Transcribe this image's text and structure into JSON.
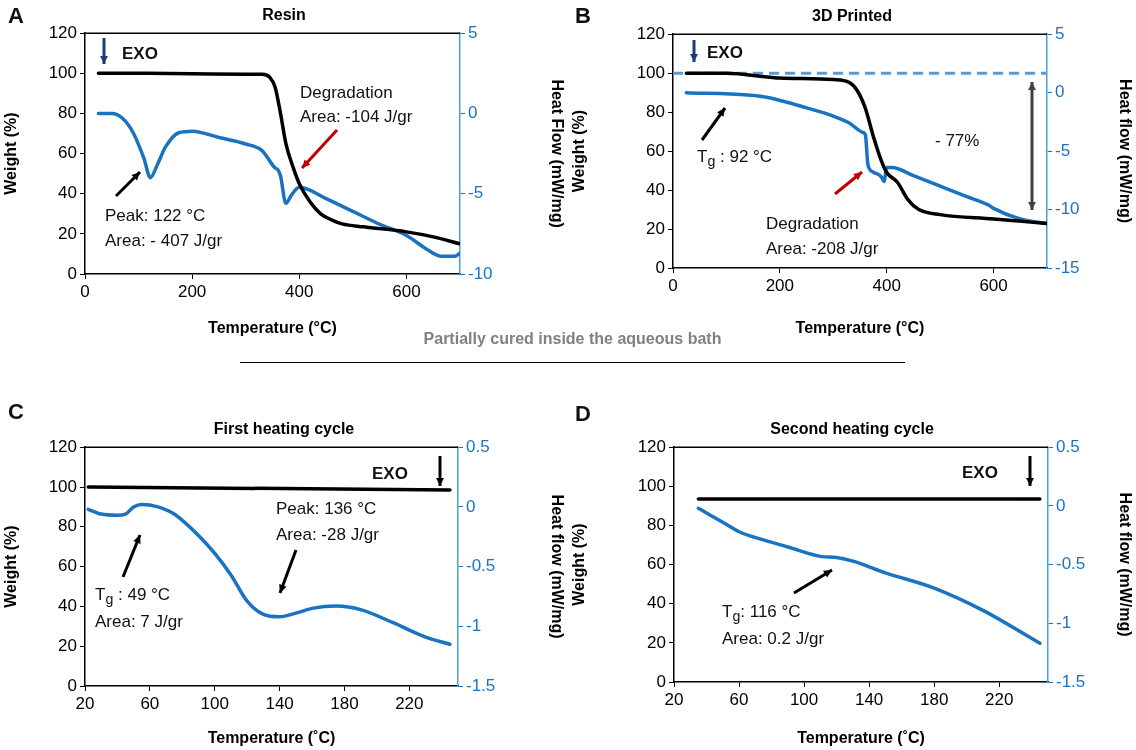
{
  "chart_data": [
    {
      "type": "line",
      "title": "Resin",
      "xlabel": "Temperature (°C)",
      "ylabel": "Weight (%)",
      "y2label": "Heat Flow (mW/mg)",
      "xlim": [
        0,
        700
      ],
      "xticks": [
        0,
        200,
        400,
        600
      ],
      "ylim": [
        0,
        120
      ],
      "yticks": [
        0,
        20,
        40,
        60,
        80,
        100,
        120
      ],
      "y2lim": [
        -10,
        5
      ],
      "y2ticks": [
        -10,
        -5,
        0,
        5
      ],
      "series": [
        {
          "color": "#000000",
          "x": [
            25,
            100,
            200,
            300,
            330,
            345,
            355,
            365,
            375,
            390,
            400,
            420,
            440,
            460,
            480,
            520,
            600,
            650,
            700
          ],
          "values": [
            100,
            100,
            99.8,
            99.6,
            99.5,
            98,
            93,
            80,
            65,
            52,
            45,
            36,
            30,
            27,
            25,
            23.5,
            21,
            18.5,
            15
          ]
        },
        {
          "color": "#1a73c1",
          "axis": "y2",
          "x": [
            25,
            50,
            70,
            90,
            110,
            122,
            135,
            150,
            175,
            200,
            250,
            300,
            330,
            355,
            360,
            365,
            375,
            385,
            400,
            450,
            500,
            550,
            600,
            640,
            665,
            690,
            700
          ],
          "values": [
            0,
            0,
            -0.3,
            -1.2,
            -2.8,
            -4,
            -3.2,
            -2.1,
            -1.2,
            -1.1,
            -1.5,
            -1.9,
            -2.3,
            -3.4,
            -3.5,
            -3.9,
            -5.6,
            -5.1,
            -4.6,
            -5.3,
            -6.1,
            -6.9,
            -7.6,
            -8.5,
            -8.9,
            -8.9,
            -8.7
          ]
        }
      ],
      "annotations": [
        "A",
        "EXO",
        "Degradation",
        "Area: -104 J/gr",
        "Peak: 122 °C",
        "Area: - 407 J/gr"
      ]
    },
    {
      "type": "line",
      "title": "3D Printed",
      "xlabel": "Temperature (°C)",
      "ylabel": "Weight (%)",
      "y2label": "Heat flow (mW/mg)",
      "xlim": [
        0,
        700
      ],
      "xticks": [
        0,
        200,
        400,
        600
      ],
      "ylim": [
        0,
        120
      ],
      "yticks": [
        0,
        20,
        40,
        60,
        80,
        100,
        120
      ],
      "y2lim": [
        -15,
        5
      ],
      "y2ticks": [
        -15,
        -10,
        -5,
        0,
        5
      ],
      "series": [
        {
          "color": "#000000",
          "x": [
            25,
            100,
            200,
            300,
            330,
            345,
            360,
            375,
            390,
            400,
            420,
            440,
            460,
            500,
            600,
            700
          ],
          "values": [
            100,
            100,
            97.5,
            96.7,
            95.2,
            91,
            82,
            67.5,
            55,
            49,
            44,
            35,
            30,
            27.4,
            25.2,
            22.8
          ]
        },
        {
          "color": "#1a73c1",
          "axis": "y2",
          "x": [
            25,
            140,
            175,
            250,
            300,
            330,
            355,
            360,
            365,
            375,
            390,
            395,
            400,
            410,
            450,
            500,
            550,
            590,
            600,
            650,
            700
          ],
          "values": [
            0,
            -0.2,
            -0.4,
            -1.3,
            -2,
            -2.6,
            -3.4,
            -3.6,
            -6.2,
            -6.8,
            -7.2,
            -7.6,
            -6.4,
            -6.4,
            -7.1,
            -8,
            -8.9,
            -9.6,
            -9.9,
            -10.8,
            -11.2
          ]
        }
      ],
      "ref_lines": [
        {
          "axis": "y",
          "value": 100,
          "color": "#5b9bd5",
          "line_style": "dashed"
        }
      ],
      "annotations": [
        "B",
        "EXO",
        "T$_{g}$ : 92 °C",
        "Degradation",
        "Area: -208 J/gr",
        "- 77%"
      ]
    },
    {
      "type": "line",
      "title": "First heating cycle",
      "subtitle": "Partially cured inside the aqueous bath",
      "xlabel": "Temperature (˚C)",
      "ylabel": "Weight (%)",
      "y2label": "Heat flow (mW/mg)",
      "xlim": [
        20,
        250
      ],
      "xticks": [
        20,
        60,
        100,
        140,
        180,
        220
      ],
      "ylim": [
        0,
        120
      ],
      "yticks": [
        0,
        20,
        40,
        60,
        80,
        100,
        120
      ],
      "y2lim": [
        -1.5,
        0.5
      ],
      "y2ticks": [
        -1.5,
        -1,
        -0.5,
        0,
        0.5
      ],
      "series": [
        {
          "color": "#000000",
          "x": [
            22,
            245
          ],
          "values": [
            100,
            98.5
          ]
        },
        {
          "color": "#1a73c1",
          "axis": "y2",
          "x": [
            22,
            30,
            40,
            45,
            50,
            55,
            65,
            75,
            90,
            100,
            110,
            120,
            130,
            140,
            150,
            160,
            175,
            190,
            210,
            230,
            245
          ],
          "values": [
            -0.02,
            -0.06,
            -0.07,
            -0.06,
            0,
            0.02,
            0,
            -0.06,
            -0.24,
            -0.39,
            -0.57,
            -0.79,
            -0.9,
            -0.92,
            -0.89,
            -0.85,
            -0.83,
            -0.86,
            -0.97,
            -1.09,
            -1.15
          ]
        }
      ],
      "annotations": [
        "C",
        "EXO",
        "Peak: 136 °C",
        "Area: -28 J/gr",
        "T$_{g}$ : 49 °C",
        "Area: 7 J/gr"
      ]
    },
    {
      "type": "line",
      "title": "Second heating cycle",
      "xlabel": "Temperature (˚C)",
      "ylabel": "Weight (%)",
      "y2label": "Heat flow (mW/mg)",
      "xlim": [
        20,
        250
      ],
      "xticks": [
        20,
        60,
        100,
        140,
        180,
        220
      ],
      "ylim": [
        0,
        120
      ],
      "yticks": [
        0,
        20,
        40,
        60,
        80,
        100,
        120
      ],
      "y2lim": [
        -1.5,
        0.5
      ],
      "y2ticks": [
        -1.5,
        -1,
        -0.5,
        0,
        0.5
      ],
      "series": [
        {
          "color": "#000000",
          "x": [
            35,
            245
          ],
          "values": [
            93.5,
            93.5
          ]
        },
        {
          "color": "#1a73c1",
          "axis": "y2",
          "x": [
            35,
            40,
            50,
            60,
            75,
            90,
            110,
            120,
            130,
            150,
            180,
            210,
            245
          ],
          "values": [
            -0.02,
            -0.06,
            -0.14,
            -0.22,
            -0.29,
            -0.35,
            -0.43,
            -0.44,
            -0.47,
            -0.57,
            -0.7,
            -0.89,
            -1.17
          ]
        }
      ],
      "annotations": [
        "D",
        "EXO",
        "T$_{g}$: 116 °C",
        "Area: 0.2 J/gr"
      ]
    }
  ]
}
